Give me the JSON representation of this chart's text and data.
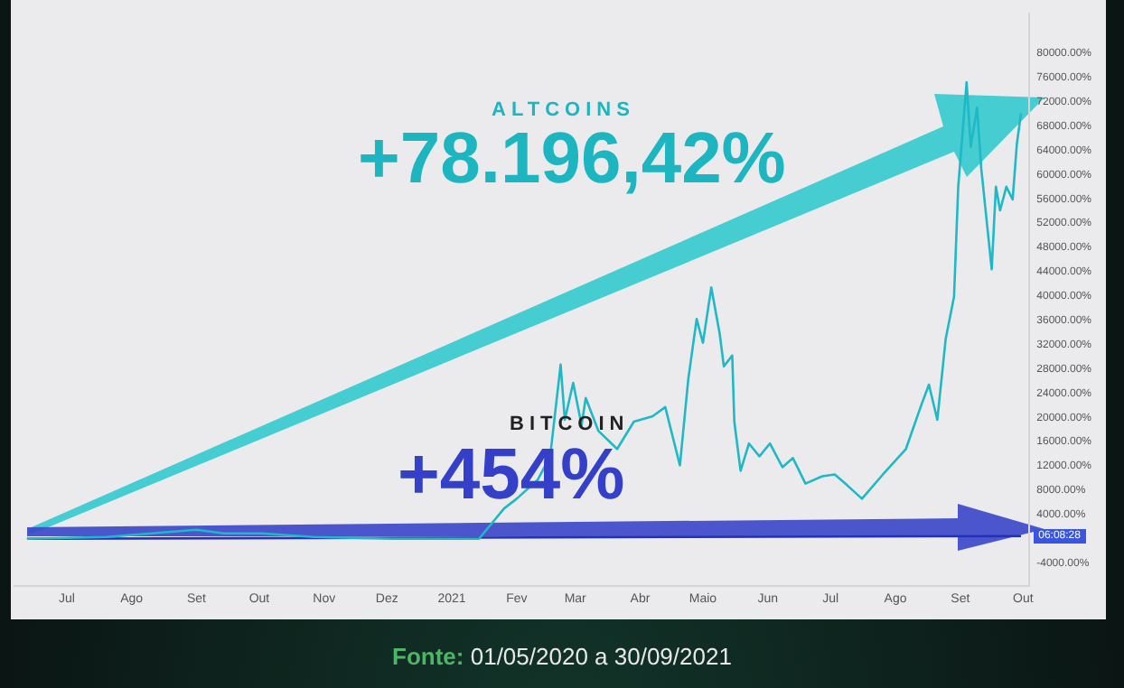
{
  "chart_data": {
    "type": "line",
    "annotations": [
      "ALTCOINS",
      "+78.196,42%",
      "BITCOIN",
      "+454%",
      "06:08:28",
      "Fonte: 01/05/2020 a 30/09/2021"
    ],
    "series": [
      {
        "color": "#1fb8c6",
        "x": [
          "2020-06-12",
          "2020-07-20",
          "2020-09-01",
          "2020-09-14",
          "2020-10-02",
          "2020-10-27",
          "2020-12-03",
          "2021-01-14",
          "2021-01-26",
          "2021-02-01",
          "2021-02-11",
          "2021-02-17",
          "2021-02-22",
          "2021-02-24",
          "2021-02-28",
          "2021-03-04",
          "2021-03-06",
          "2021-03-12",
          "2021-03-21",
          "2021-03-29",
          "2021-04-07",
          "2021-04-13",
          "2021-04-20",
          "2021-04-24",
          "2021-04-28",
          "2021-05-01",
          "2021-05-05",
          "2021-05-09",
          "2021-05-11",
          "2021-05-15",
          "2021-05-16",
          "2021-05-19",
          "2021-05-23",
          "2021-05-28",
          "2021-06-02",
          "2021-06-08",
          "2021-06-13",
          "2021-06-19",
          "2021-06-27",
          "2021-07-03",
          "2021-07-09",
          "2021-07-16",
          "2021-07-26",
          "2021-08-06",
          "2021-08-13",
          "2021-08-17",
          "2021-08-21",
          "2021-08-25",
          "2021-08-29",
          "2021-08-31",
          "2021-09-04",
          "2021-09-06",
          "2021-09-09",
          "2021-09-11",
          "2021-09-16",
          "2021-09-18",
          "2021-09-20",
          "2021-09-23",
          "2021-09-26",
          "2021-09-28",
          "2021-09-30"
        ],
        "values": [
          0,
          300,
          1500,
          900,
          900,
          300,
          0,
          0,
          5000,
          6600,
          9700,
          13600,
          28700,
          19600,
          25700,
          18700,
          23200,
          17800,
          14800,
          19300,
          20200,
          21700,
          12100,
          26300,
          36200,
          32300,
          41400,
          33800,
          28400,
          30200,
          19300,
          11200,
          15700,
          13600,
          15700,
          11800,
          13300,
          9100,
          10300,
          10600,
          8800,
          6600,
          10600,
          14800,
          21700,
          25400,
          19600,
          32900,
          39900,
          58000,
          75200,
          64600,
          71000,
          61000,
          44400,
          58000,
          54100,
          58000,
          55900,
          65000,
          70100
        ]
      },
      {
        "color": "#2430b8",
        "x": [
          "2020-06-12",
          "2021-09-30"
        ],
        "values": [
          0,
          454
        ]
      }
    ],
    "xlim": [
      "2020-06-06",
      "2021-10-04"
    ],
    "xticks": [
      {
        "value": "2020-07-01",
        "label": "Jul"
      },
      {
        "value": "2020-08-01",
        "label": "Ago"
      },
      {
        "value": "2020-09-01",
        "label": "Set"
      },
      {
        "value": "2020-10-01",
        "label": "Out"
      },
      {
        "value": "2020-11-01",
        "label": "Nov"
      },
      {
        "value": "2020-12-01",
        "label": "Dez"
      },
      {
        "value": "2021-01-01",
        "label": "2021"
      },
      {
        "value": "2021-02-01",
        "label": "Fev"
      },
      {
        "value": "2021-03-01",
        "label": "Mar"
      },
      {
        "value": "2021-04-01",
        "label": "Abr"
      },
      {
        "value": "2021-05-01",
        "label": "Maio"
      },
      {
        "value": "2021-06-01",
        "label": "Jun"
      },
      {
        "value": "2021-07-01",
        "label": "Jul"
      },
      {
        "value": "2021-08-01",
        "label": "Ago"
      },
      {
        "value": "2021-09-01",
        "label": "Set"
      },
      {
        "value": "2021-10-01",
        "label": "Out"
      }
    ],
    "ylim": [
      -7800,
      86500
    ],
    "yticks": [
      {
        "value": -4000,
        "label": "-4000.00%"
      },
      {
        "value": 4000,
        "label": "4000.00%"
      },
      {
        "value": 8000,
        "label": "8000.00%"
      },
      {
        "value": 12000,
        "label": "12000.00%"
      },
      {
        "value": 16000,
        "label": "16000.00%"
      },
      {
        "value": 20000,
        "label": "20000.00%"
      },
      {
        "value": 24000,
        "label": "24000.00%"
      },
      {
        "value": 28000,
        "label": "28000.00%"
      },
      {
        "value": 32000,
        "label": "32000.00%"
      },
      {
        "value": 36000,
        "label": "36000.00%"
      },
      {
        "value": 40000,
        "label": "40000.00%"
      },
      {
        "value": 44000,
        "label": "44000.00%"
      },
      {
        "value": 48000,
        "label": "48000.00%"
      },
      {
        "value": 52000,
        "label": "52000.00%"
      },
      {
        "value": 56000,
        "label": "56000.00%"
      },
      {
        "value": 60000,
        "label": "60000.00%"
      },
      {
        "value": 64000,
        "label": "64000.00%"
      },
      {
        "value": 68000,
        "label": "68000.00%"
      },
      {
        "value": 72000,
        "label": "72000.00%"
      },
      {
        "value": 76000,
        "label": "76000.00%"
      },
      {
        "value": 80000,
        "label": "80000.00%"
      }
    ],
    "marker": "none",
    "line_style": "solid",
    "legend": false
  }
}
